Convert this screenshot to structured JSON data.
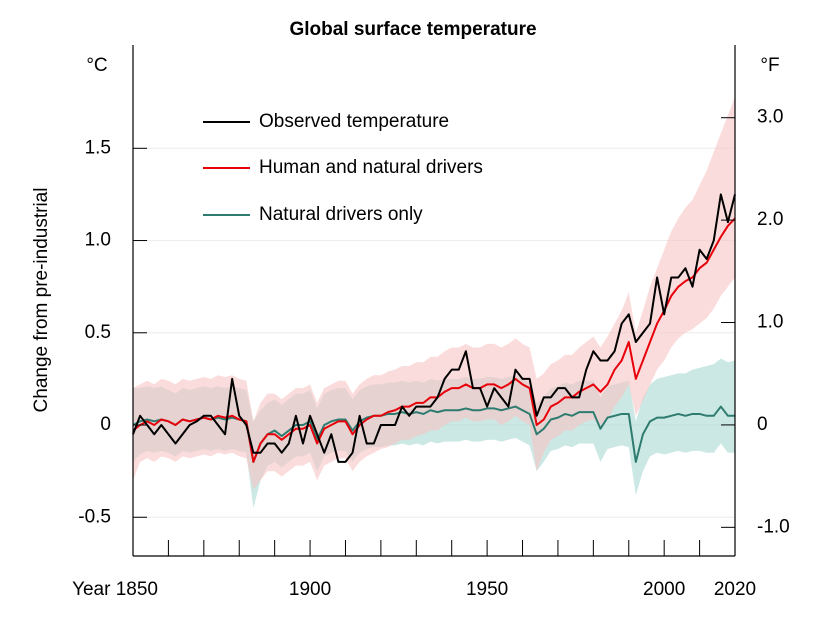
{
  "chart_data": {
    "type": "line",
    "title": "Global surface temperature",
    "y_unit": "°C",
    "y2_unit": "°F",
    "ylabel": "Change from pre-industrial",
    "xlim": [
      1850,
      2020
    ],
    "xticks": [
      {
        "value": 1850,
        "label": "Year 1850"
      },
      1900,
      1950,
      2000,
      2020
    ],
    "xminorticks": [
      1860,
      1870,
      1880,
      1890,
      1910,
      1920,
      1930,
      1940,
      1960,
      1970,
      1980,
      1990,
      2010
    ],
    "ylim": [
      -0.71,
      2.06
    ],
    "yticks": [
      -0.5,
      0,
      0.5,
      {
        "value": 1.0,
        "label": "1.0"
      },
      1.5
    ],
    "y2lim": [
      -1.28,
      3.71
    ],
    "y2ticks": [
      {
        "value": -1.0,
        "label": "-1.0"
      },
      0,
      {
        "value": 1.0,
        "label": "1.0"
      },
      {
        "value": 2.0,
        "label": "2.0"
      },
      {
        "value": 3.0,
        "label": "3.0"
      }
    ],
    "grid": true,
    "legend": "upper left",
    "x": [
      1850,
      1852,
      1854,
      1856,
      1858,
      1860,
      1862,
      1864,
      1866,
      1868,
      1870,
      1872,
      1874,
      1876,
      1878,
      1880,
      1882,
      1884,
      1886,
      1888,
      1890,
      1892,
      1894,
      1896,
      1898,
      1900,
      1902,
      1904,
      1906,
      1908,
      1910,
      1912,
      1914,
      1916,
      1918,
      1920,
      1922,
      1924,
      1926,
      1928,
      1930,
      1932,
      1934,
      1936,
      1938,
      1940,
      1942,
      1944,
      1946,
      1948,
      1950,
      1952,
      1954,
      1956,
      1958,
      1960,
      1962,
      1964,
      1966,
      1968,
      1970,
      1972,
      1974,
      1976,
      1978,
      1980,
      1982,
      1984,
      1986,
      1988,
      1990,
      1992,
      1994,
      1996,
      1998,
      2000,
      2002,
      2004,
      2006,
      2008,
      2010,
      2012,
      2014,
      2016,
      2018,
      2020
    ],
    "series": [
      {
        "name": "Observed temperature",
        "color": "#000000",
        "values": [
          -0.05,
          0.05,
          0.0,
          -0.05,
          0.0,
          -0.05,
          -0.1,
          -0.05,
          0.0,
          0.02,
          0.05,
          0.05,
          0.0,
          -0.05,
          0.25,
          0.05,
          0.0,
          -0.15,
          -0.15,
          -0.1,
          -0.1,
          -0.15,
          -0.1,
          0.05,
          -0.1,
          0.05,
          -0.05,
          -0.15,
          -0.05,
          -0.2,
          -0.2,
          -0.15,
          0.05,
          -0.1,
          -0.1,
          0.0,
          0.0,
          0.0,
          0.1,
          0.05,
          0.1,
          0.1,
          0.1,
          0.15,
          0.25,
          0.3,
          0.3,
          0.4,
          0.2,
          0.2,
          0.1,
          0.2,
          0.15,
          0.1,
          0.3,
          0.25,
          0.25,
          0.05,
          0.15,
          0.15,
          0.2,
          0.2,
          0.15,
          0.15,
          0.3,
          0.4,
          0.35,
          0.35,
          0.4,
          0.55,
          0.6,
          0.45,
          0.5,
          0.55,
          0.8,
          0.6,
          0.8,
          0.8,
          0.85,
          0.75,
          0.95,
          0.9,
          1.0,
          1.25,
          1.1,
          1.25
        ]
      },
      {
        "name": "Human and natural drivers",
        "color": "#e8000b",
        "band_color": "#f9c4c4",
        "values": [
          -0.03,
          0.0,
          0.02,
          0.0,
          0.03,
          0.02,
          0.0,
          0.03,
          0.02,
          0.03,
          0.04,
          0.03,
          0.05,
          0.04,
          0.05,
          0.03,
          0.02,
          -0.2,
          -0.1,
          -0.05,
          -0.05,
          -0.08,
          -0.05,
          -0.02,
          -0.02,
          0.0,
          -0.1,
          -0.02,
          0.0,
          0.02,
          0.02,
          -0.05,
          0.0,
          0.03,
          0.05,
          0.05,
          0.07,
          0.08,
          0.1,
          0.1,
          0.12,
          0.12,
          0.15,
          0.15,
          0.18,
          0.2,
          0.2,
          0.22,
          0.2,
          0.2,
          0.22,
          0.22,
          0.2,
          0.22,
          0.25,
          0.22,
          0.2,
          0.0,
          0.03,
          0.1,
          0.12,
          0.15,
          0.15,
          0.18,
          0.2,
          0.22,
          0.18,
          0.22,
          0.3,
          0.35,
          0.45,
          0.25,
          0.35,
          0.45,
          0.55,
          0.62,
          0.7,
          0.75,
          0.78,
          0.8,
          0.85,
          0.88,
          0.95,
          1.02,
          1.08,
          1.12
        ],
        "lower": [
          -0.3,
          -0.2,
          -0.18,
          -0.2,
          -0.17,
          -0.18,
          -0.2,
          -0.17,
          -0.18,
          -0.17,
          -0.16,
          -0.17,
          -0.15,
          -0.16,
          -0.15,
          -0.17,
          -0.18,
          -0.35,
          -0.3,
          -0.25,
          -0.25,
          -0.28,
          -0.25,
          -0.22,
          -0.22,
          -0.2,
          -0.3,
          -0.22,
          -0.2,
          -0.18,
          -0.18,
          -0.25,
          -0.2,
          -0.17,
          -0.15,
          -0.13,
          -0.12,
          -0.1,
          -0.08,
          -0.08,
          -0.06,
          -0.05,
          -0.03,
          -0.03,
          0.0,
          0.02,
          0.02,
          0.04,
          0.02,
          0.02,
          0.03,
          0.03,
          0.0,
          0.02,
          0.05,
          0.02,
          0.0,
          -0.25,
          -0.15,
          -0.08,
          -0.06,
          -0.03,
          -0.03,
          0.0,
          0.02,
          0.03,
          0.0,
          0.03,
          0.1,
          0.15,
          0.22,
          0.05,
          0.13,
          0.22,
          0.3,
          0.35,
          0.42,
          0.47,
          0.5,
          0.52,
          0.55,
          0.58,
          0.63,
          0.7,
          0.75,
          0.8
        ],
        "upper": [
          0.2,
          0.22,
          0.24,
          0.22,
          0.25,
          0.24,
          0.22,
          0.25,
          0.24,
          0.25,
          0.26,
          0.25,
          0.27,
          0.26,
          0.27,
          0.25,
          0.24,
          0.02,
          0.12,
          0.17,
          0.17,
          0.14,
          0.17,
          0.2,
          0.2,
          0.22,
          0.12,
          0.2,
          0.22,
          0.24,
          0.24,
          0.17,
          0.22,
          0.25,
          0.27,
          0.27,
          0.29,
          0.3,
          0.32,
          0.32,
          0.34,
          0.34,
          0.37,
          0.37,
          0.4,
          0.42,
          0.42,
          0.44,
          0.42,
          0.42,
          0.44,
          0.44,
          0.42,
          0.44,
          0.47,
          0.44,
          0.42,
          0.25,
          0.28,
          0.33,
          0.35,
          0.38,
          0.38,
          0.42,
          0.45,
          0.48,
          0.42,
          0.48,
          0.55,
          0.62,
          0.72,
          0.5,
          0.62,
          0.75,
          0.85,
          0.95,
          1.05,
          1.12,
          1.18,
          1.22,
          1.3,
          1.38,
          1.48,
          1.58,
          1.68,
          1.78
        ]
      },
      {
        "name": "Natural drivers only",
        "color": "#2e7b6f",
        "band_color": "#a9d8d2",
        "values": [
          0.0,
          0.02,
          0.03,
          0.02,
          0.03,
          0.02,
          0.0,
          0.03,
          0.02,
          0.03,
          0.04,
          0.03,
          0.04,
          0.03,
          0.04,
          0.03,
          0.02,
          -0.2,
          -0.1,
          -0.05,
          -0.03,
          -0.06,
          -0.03,
          0.0,
          0.0,
          0.02,
          -0.08,
          0.0,
          0.02,
          0.03,
          0.03,
          -0.03,
          0.02,
          0.04,
          0.05,
          0.05,
          0.06,
          0.06,
          0.07,
          0.06,
          0.07,
          0.06,
          0.08,
          0.07,
          0.08,
          0.08,
          0.08,
          0.09,
          0.08,
          0.08,
          0.09,
          0.09,
          0.08,
          0.09,
          0.1,
          0.08,
          0.06,
          -0.05,
          -0.02,
          0.03,
          0.04,
          0.06,
          0.05,
          0.07,
          0.07,
          0.07,
          -0.02,
          0.04,
          0.05,
          0.06,
          0.06,
          -0.2,
          -0.05,
          0.02,
          0.04,
          0.04,
          0.05,
          0.06,
          0.05,
          0.06,
          0.06,
          0.05,
          0.05,
          0.1,
          0.05,
          0.05
        ],
        "lower": [
          -0.2,
          -0.16,
          -0.14,
          -0.15,
          -0.14,
          -0.15,
          -0.17,
          -0.14,
          -0.15,
          -0.14,
          -0.13,
          -0.14,
          -0.13,
          -0.14,
          -0.13,
          -0.14,
          -0.15,
          -0.45,
          -0.3,
          -0.22,
          -0.2,
          -0.23,
          -0.2,
          -0.17,
          -0.17,
          -0.15,
          -0.25,
          -0.17,
          -0.15,
          -0.14,
          -0.14,
          -0.2,
          -0.15,
          -0.13,
          -0.12,
          -0.12,
          -0.11,
          -0.11,
          -0.1,
          -0.11,
          -0.1,
          -0.11,
          -0.09,
          -0.1,
          -0.09,
          -0.09,
          -0.09,
          -0.08,
          -0.09,
          -0.09,
          -0.08,
          -0.08,
          -0.09,
          -0.08,
          -0.07,
          -0.09,
          -0.11,
          -0.25,
          -0.2,
          -0.14,
          -0.13,
          -0.11,
          -0.12,
          -0.1,
          -0.1,
          -0.1,
          -0.2,
          -0.13,
          -0.12,
          -0.11,
          -0.12,
          -0.38,
          -0.25,
          -0.17,
          -0.15,
          -0.16,
          -0.15,
          -0.14,
          -0.15,
          -0.14,
          -0.14,
          -0.15,
          -0.15,
          -0.1,
          -0.15,
          -0.15
        ],
        "upper": [
          0.2,
          0.2,
          0.21,
          0.2,
          0.21,
          0.19,
          0.17,
          0.2,
          0.19,
          0.2,
          0.21,
          0.2,
          0.21,
          0.2,
          0.21,
          0.2,
          0.19,
          0.02,
          0.08,
          0.12,
          0.14,
          0.11,
          0.14,
          0.17,
          0.17,
          0.19,
          0.09,
          0.17,
          0.19,
          0.2,
          0.2,
          0.14,
          0.19,
          0.21,
          0.22,
          0.22,
          0.23,
          0.23,
          0.24,
          0.23,
          0.24,
          0.23,
          0.25,
          0.24,
          0.25,
          0.25,
          0.25,
          0.26,
          0.25,
          0.25,
          0.26,
          0.26,
          0.25,
          0.26,
          0.27,
          0.25,
          0.23,
          0.12,
          0.15,
          0.2,
          0.21,
          0.23,
          0.22,
          0.24,
          0.24,
          0.24,
          0.15,
          0.21,
          0.22,
          0.23,
          0.24,
          0.02,
          0.15,
          0.22,
          0.25,
          0.26,
          0.27,
          0.28,
          0.28,
          0.3,
          0.31,
          0.32,
          0.33,
          0.36,
          0.34,
          0.35
        ]
      }
    ]
  }
}
